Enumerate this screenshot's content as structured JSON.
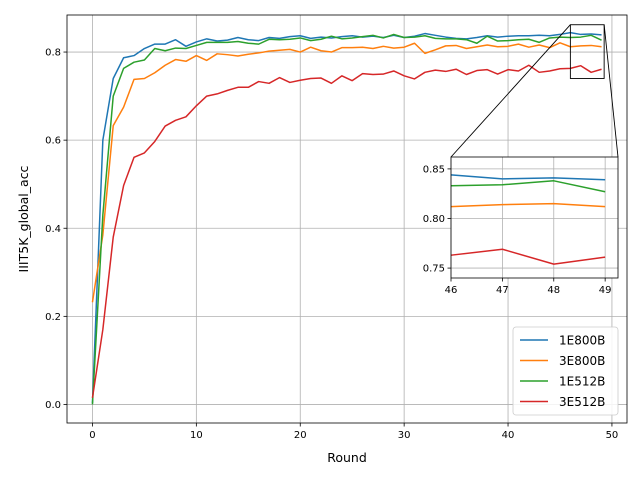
{
  "chart_data": [
    {
      "type": "line",
      "xlabel": "Round",
      "ylabel": "IIIT5K_global_acc",
      "xlim": [
        -2.45,
        51.45
      ],
      "ylim": [
        -0.0421,
        0.8841
      ],
      "xticks": [
        0,
        10,
        20,
        30,
        40,
        50
      ],
      "xtick_labels": [
        "0",
        "10",
        "20",
        "30",
        "40",
        "50"
      ],
      "yticks": [
        0.0,
        0.2,
        0.4,
        0.6,
        0.8
      ],
      "ytick_labels": [
        "0.0",
        "0.2",
        "0.4",
        "0.6",
        "0.8"
      ],
      "grid": true,
      "legend_position": "lower-right",
      "x": [
        0,
        1,
        2,
        3,
        4,
        5,
        6,
        7,
        8,
        9,
        10,
        11,
        12,
        13,
        14,
        15,
        16,
        17,
        18,
        19,
        20,
        21,
        22,
        23,
        24,
        25,
        26,
        27,
        28,
        29,
        30,
        31,
        32,
        33,
        34,
        35,
        36,
        37,
        38,
        39,
        40,
        41,
        42,
        43,
        44,
        45,
        46,
        47,
        48,
        49
      ],
      "series": [
        {
          "name": "1E800B",
          "color": "#1f77b4",
          "values": [
            0.003,
            0.6,
            0.74,
            0.787,
            0.792,
            0.808,
            0.818,
            0.818,
            0.828,
            0.813,
            0.823,
            0.83,
            0.825,
            0.827,
            0.833,
            0.828,
            0.826,
            0.833,
            0.831,
            0.835,
            0.837,
            0.831,
            0.834,
            0.832,
            0.835,
            0.837,
            0.834,
            0.836,
            0.833,
            0.838,
            0.833,
            0.836,
            0.842,
            0.838,
            0.834,
            0.831,
            0.83,
            0.833,
            0.837,
            0.834,
            0.836,
            0.837,
            0.837,
            0.838,
            0.837,
            0.84,
            0.844,
            0.84,
            0.841,
            0.839
          ]
        },
        {
          "name": "3E800B",
          "color": "#ff7f0e",
          "values": [
            0.232,
            0.385,
            0.633,
            0.675,
            0.738,
            0.74,
            0.753,
            0.77,
            0.783,
            0.779,
            0.792,
            0.781,
            0.796,
            0.794,
            0.791,
            0.795,
            0.798,
            0.802,
            0.804,
            0.806,
            0.8,
            0.811,
            0.803,
            0.8,
            0.81,
            0.81,
            0.811,
            0.808,
            0.813,
            0.809,
            0.811,
            0.82,
            0.797,
            0.805,
            0.814,
            0.815,
            0.808,
            0.812,
            0.816,
            0.812,
            0.813,
            0.818,
            0.811,
            0.816,
            0.81,
            0.821,
            0.812,
            0.814,
            0.815,
            0.812
          ]
        },
        {
          "name": "1E512B",
          "color": "#2ca02c",
          "values": [
            0.0,
            0.43,
            0.7,
            0.763,
            0.777,
            0.782,
            0.808,
            0.803,
            0.809,
            0.808,
            0.815,
            0.822,
            0.822,
            0.822,
            0.824,
            0.82,
            0.818,
            0.829,
            0.828,
            0.829,
            0.832,
            0.826,
            0.829,
            0.836,
            0.83,
            0.832,
            0.835,
            0.838,
            0.832,
            0.84,
            0.833,
            0.834,
            0.837,
            0.831,
            0.83,
            0.83,
            0.828,
            0.82,
            0.836,
            0.825,
            0.826,
            0.828,
            0.829,
            0.822,
            0.832,
            0.834,
            0.833,
            0.834,
            0.838,
            0.827
          ]
        },
        {
          "name": "3E512B",
          "color": "#d62728",
          "values": [
            0.015,
            0.17,
            0.38,
            0.497,
            0.561,
            0.571,
            0.597,
            0.632,
            0.645,
            0.653,
            0.678,
            0.7,
            0.705,
            0.713,
            0.72,
            0.72,
            0.733,
            0.729,
            0.742,
            0.731,
            0.736,
            0.74,
            0.741,
            0.729,
            0.746,
            0.735,
            0.751,
            0.749,
            0.75,
            0.757,
            0.746,
            0.739,
            0.754,
            0.759,
            0.756,
            0.761,
            0.749,
            0.758,
            0.76,
            0.75,
            0.76,
            0.757,
            0.77,
            0.754,
            0.757,
            0.762,
            0.763,
            0.769,
            0.754,
            0.761
          ]
        }
      ]
    },
    {
      "type": "line",
      "xlim": [
        46,
        49.25
      ],
      "ylim": [
        0.74,
        0.862
      ],
      "xticks": [
        46,
        47,
        48,
        49
      ],
      "xtick_labels": [
        "46",
        "47",
        "48",
        "49"
      ],
      "yticks": [
        0.75,
        0.8,
        0.85
      ],
      "ytick_labels": [
        "0.75",
        "0.80",
        "0.85"
      ],
      "grid": true,
      "x": [
        46,
        47,
        48,
        49
      ],
      "series": [
        {
          "color": "#1f77b4",
          "values": [
            0.844,
            0.84,
            0.841,
            0.839
          ]
        },
        {
          "color": "#ff7f0e",
          "values": [
            0.812,
            0.814,
            0.815,
            0.812
          ]
        },
        {
          "color": "#2ca02c",
          "values": [
            0.833,
            0.834,
            0.838,
            0.827
          ]
        },
        {
          "color": "#d62728",
          "values": [
            0.763,
            0.769,
            0.754,
            0.761
          ]
        }
      ]
    }
  ]
}
